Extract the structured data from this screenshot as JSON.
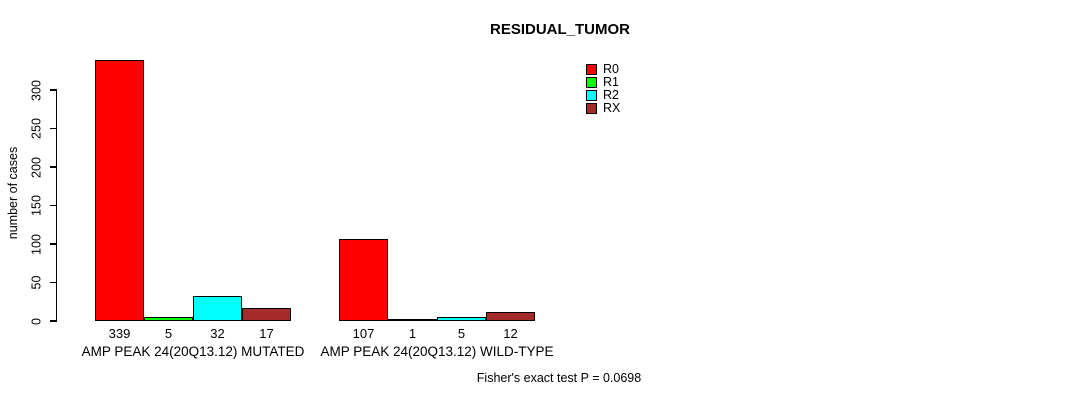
{
  "chart_data": {
    "type": "bar",
    "title": "RESIDUAL_TUMOR",
    "ylabel": "number of cases",
    "xlabel": "",
    "ylim": [
      0,
      339
    ],
    "yticks": [
      0,
      50,
      100,
      150,
      200,
      250,
      300
    ],
    "grid": false,
    "legend_position": "top-right",
    "categories": [
      "AMP PEAK 24(20Q13.12) MUTATED",
      "AMP PEAK 24(20Q13.12) WILD-TYPE"
    ],
    "series": [
      {
        "name": "R0",
        "color": "#FF0000",
        "values": [
          339,
          107
        ]
      },
      {
        "name": "R1",
        "color": "#00FF00",
        "values": [
          5,
          1
        ]
      },
      {
        "name": "R2",
        "color": "#00FFFF",
        "values": [
          32,
          5
        ]
      },
      {
        "name": "RX",
        "color": "#A52A2A",
        "values": [
          17,
          12
        ]
      }
    ],
    "bar_value_labels": [
      [
        "339",
        "5",
        "32",
        "17"
      ],
      [
        "107",
        "1",
        "5",
        "12"
      ]
    ],
    "annotation": "Fisher's exact test P = 0.0698",
    "axis_color": "#000000",
    "background_color": "#ffffff"
  }
}
